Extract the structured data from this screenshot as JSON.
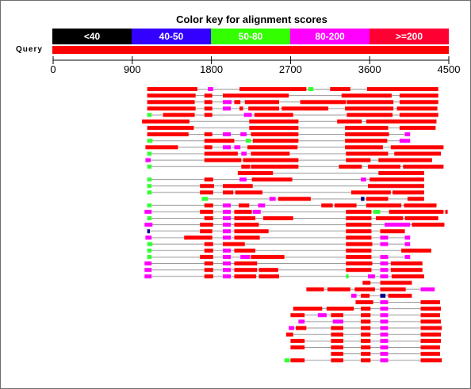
{
  "title": "Color key for alignment scores",
  "legend": [
    {
      "label": "<40",
      "color": "#000000",
      "text_color": "#ffffff"
    },
    {
      "label": "40-50",
      "color": "#3300ff",
      "text_color": "#ffffff"
    },
    {
      "label": "50-80",
      "color": "#33ff00",
      "text_color": "#ffffff"
    },
    {
      "label": "80-200",
      "color": "#ff00ff",
      "text_color": "#ffffff"
    },
    {
      "label": ">=200",
      "color": "#ff0033",
      "text_color": "#ffffff"
    }
  ],
  "query": {
    "label": "Query",
    "length": 4500,
    "color": "#ff0000"
  },
  "axis": {
    "min": 0,
    "max": 4500,
    "ticks": [
      0,
      900,
      1800,
      2700,
      3600,
      4500
    ]
  },
  "colors": {
    "red": "#ff0000",
    "magenta": "#ff00ff",
    "green": "#33ff33",
    "blue": "#00008b",
    "connector": "#999999"
  },
  "hits": [
    {
      "segs": [
        [
          1070,
          1640,
          "r"
        ],
        [
          1760,
          1820,
          "m"
        ],
        [
          2120,
          2880,
          "r"
        ],
        [
          2900,
          2960,
          "g"
        ],
        [
          3150,
          3380,
          "r"
        ],
        [
          3570,
          4380,
          "r"
        ]
      ]
    },
    {
      "segs": [
        [
          1070,
          1620,
          "r"
        ],
        [
          1720,
          1810,
          "r"
        ],
        [
          1930,
          2680,
          "r"
        ],
        [
          3280,
          3850,
          "r"
        ],
        [
          3940,
          4380,
          "r"
        ]
      ]
    },
    {
      "segs": [
        [
          1070,
          1610,
          "r"
        ],
        [
          1720,
          1810,
          "r"
        ],
        [
          1930,
          2030,
          "m"
        ],
        [
          2060,
          2130,
          "r"
        ],
        [
          2180,
          2570,
          "r"
        ],
        [
          2810,
          3330,
          "r"
        ],
        [
          3340,
          3870,
          "r"
        ],
        [
          3940,
          4380,
          "r"
        ]
      ]
    },
    {
      "segs": [
        [
          1070,
          1620,
          "r"
        ],
        [
          1720,
          1810,
          "r"
        ],
        [
          1930,
          2020,
          "m"
        ],
        [
          2120,
          2160,
          "r"
        ],
        [
          2220,
          2570,
          "r"
        ],
        [
          2600,
          3130,
          "r"
        ],
        [
          3320,
          3870,
          "r"
        ],
        [
          3910,
          4370,
          "r"
        ]
      ]
    },
    {
      "segs": [
        [
          1070,
          1120,
          "g"
        ],
        [
          1250,
          1610,
          "r"
        ],
        [
          1720,
          1810,
          "r"
        ],
        [
          2170,
          2260,
          "m"
        ],
        [
          2290,
          2730,
          "r"
        ],
        [
          3340,
          3860,
          "r"
        ],
        [
          3940,
          4380,
          "r"
        ]
      ]
    },
    {
      "segs": [
        [
          1010,
          1550,
          "r"
        ],
        [
          2230,
          2790,
          "r"
        ],
        [
          3230,
          3510,
          "r"
        ],
        [
          3560,
          4360,
          "r"
        ]
      ]
    },
    {
      "segs": [
        [
          1070,
          1600,
          "r"
        ],
        [
          2230,
          2790,
          "r"
        ],
        [
          3320,
          3810,
          "r"
        ],
        [
          3940,
          4350,
          "r"
        ]
      ]
    },
    {
      "segs": [
        [
          1070,
          1540,
          "r"
        ],
        [
          1720,
          1810,
          "r"
        ],
        [
          1930,
          2020,
          "m"
        ],
        [
          2130,
          2200,
          "m"
        ],
        [
          2250,
          2790,
          "r"
        ],
        [
          3320,
          3820,
          "r"
        ],
        [
          4000,
          4060,
          "m"
        ]
      ]
    },
    {
      "segs": [
        [
          1070,
          1130,
          "g"
        ],
        [
          2190,
          2250,
          "g"
        ],
        [
          1720,
          2060,
          "r"
        ],
        [
          2270,
          2790,
          "r"
        ],
        [
          3320,
          3800,
          "r"
        ],
        [
          3940,
          4060,
          "m"
        ]
      ]
    },
    {
      "segs": [
        [
          1050,
          1420,
          "r"
        ],
        [
          1720,
          1810,
          "r"
        ],
        [
          1930,
          2020,
          "m"
        ],
        [
          2060,
          2130,
          "m"
        ],
        [
          2210,
          2780,
          "r"
        ],
        [
          3320,
          3750,
          "r"
        ],
        [
          3840,
          4440,
          "r"
        ]
      ]
    },
    {
      "segs": [
        [
          1070,
          1120,
          "g"
        ],
        [
          1720,
          2100,
          "r"
        ],
        [
          2140,
          2200,
          "m"
        ],
        [
          2250,
          2690,
          "r"
        ],
        [
          3330,
          3810,
          "r"
        ],
        [
          3880,
          4410,
          "r"
        ]
      ]
    },
    {
      "segs": [
        [
          1050,
          1110,
          "m"
        ],
        [
          1720,
          2140,
          "r"
        ],
        [
          2160,
          2790,
          "r"
        ],
        [
          3330,
          3610,
          "r"
        ],
        [
          3700,
          4310,
          "r"
        ]
      ]
    },
    {
      "segs": [
        [
          1070,
          1120,
          "g"
        ],
        [
          2140,
          2240,
          "r"
        ],
        [
          2250,
          2540,
          "r"
        ],
        [
          2540,
          2790,
          "r"
        ],
        [
          3250,
          3510,
          "r"
        ],
        [
          3580,
          3950,
          "r"
        ],
        [
          3980,
          4440,
          "r"
        ]
      ]
    },
    {
      "segs": [
        [
          2100,
          2500,
          "r"
        ],
        [
          3700,
          4220,
          "r"
        ]
      ]
    },
    {
      "segs": [
        [
          1070,
          1120,
          "g"
        ],
        [
          1720,
          1820,
          "r"
        ],
        [
          2120,
          2200,
          "m"
        ],
        [
          2260,
          2720,
          "r"
        ],
        [
          3500,
          3560,
          "m"
        ],
        [
          3600,
          4220,
          "r"
        ]
      ]
    },
    {
      "segs": [
        [
          1070,
          1120,
          "g"
        ],
        [
          1670,
          1830,
          "r"
        ],
        [
          1930,
          2270,
          "r"
        ],
        [
          3580,
          4220,
          "r"
        ]
      ]
    },
    {
      "segs": [
        [
          1070,
          1120,
          "g"
        ],
        [
          1670,
          1820,
          "r"
        ],
        [
          1930,
          2050,
          "r"
        ],
        [
          2070,
          2380,
          "r"
        ],
        [
          3390,
          3840,
          "r"
        ],
        [
          3860,
          4220,
          "r"
        ]
      ]
    },
    {
      "segs": [
        [
          1690,
          1760,
          "g"
        ],
        [
          2460,
          2530,
          "m"
        ],
        [
          2560,
          2930,
          "r"
        ],
        [
          3500,
          3540,
          "b"
        ],
        [
          3560,
          3810,
          "r"
        ],
        [
          4030,
          4220,
          "r"
        ]
      ]
    },
    {
      "segs": [
        [
          1070,
          1120,
          "g"
        ],
        [
          1720,
          1820,
          "r"
        ],
        [
          1930,
          2020,
          "m"
        ],
        [
          2110,
          2230,
          "r"
        ],
        [
          2330,
          2410,
          "m"
        ],
        [
          3050,
          3180,
          "r"
        ],
        [
          3200,
          3450,
          "r"
        ],
        [
          3560,
          3960,
          "r"
        ],
        [
          3990,
          4360,
          "r"
        ]
      ]
    },
    {
      "segs": [
        [
          1040,
          1120,
          "m"
        ],
        [
          1670,
          1820,
          "r"
        ],
        [
          1930,
          2020,
          "m"
        ],
        [
          2060,
          2260,
          "r"
        ],
        [
          2270,
          2360,
          "m"
        ],
        [
          3330,
          3620,
          "r"
        ],
        [
          3640,
          3720,
          "g"
        ],
        [
          3820,
          4440,
          "r"
        ],
        [
          4460,
          4470,
          "r"
        ]
      ]
    },
    {
      "segs": [
        [
          1070,
          1120,
          "g"
        ],
        [
          1720,
          1820,
          "r"
        ],
        [
          1930,
          2020,
          "m"
        ],
        [
          2060,
          2300,
          "r"
        ],
        [
          2390,
          2730,
          "r"
        ],
        [
          3330,
          3620,
          "r"
        ],
        [
          3670,
          3980,
          "r"
        ],
        [
          4000,
          4380,
          "r"
        ]
      ]
    },
    {
      "segs": [
        [
          1040,
          1130,
          "m"
        ],
        [
          1670,
          1820,
          "r"
        ],
        [
          1930,
          2020,
          "m"
        ],
        [
          2060,
          2340,
          "r"
        ],
        [
          3330,
          3620,
          "r"
        ],
        [
          3770,
          4060,
          "m"
        ],
        [
          4080,
          4450,
          "r"
        ]
      ]
    },
    {
      "segs": [
        [
          1070,
          1100,
          "b"
        ],
        [
          1670,
          1810,
          "r"
        ],
        [
          1930,
          2020,
          "m"
        ],
        [
          2060,
          2450,
          "r"
        ],
        [
          3330,
          3620,
          "r"
        ],
        [
          3720,
          4000,
          "r"
        ]
      ]
    },
    {
      "segs": [
        [
          1050,
          1120,
          "m"
        ],
        [
          1490,
          1810,
          "r"
        ],
        [
          1930,
          2020,
          "m"
        ],
        [
          2060,
          2350,
          "r"
        ],
        [
          3330,
          3620,
          "r"
        ],
        [
          3720,
          3810,
          "m"
        ],
        [
          4000,
          4060,
          "m"
        ]
      ]
    },
    {
      "segs": [
        [
          1070,
          1130,
          "g"
        ],
        [
          1720,
          1820,
          "r"
        ],
        [
          1930,
          2070,
          "r"
        ],
        [
          2060,
          2180,
          "r"
        ],
        [
          3330,
          3630,
          "r"
        ],
        [
          3720,
          3810,
          "m"
        ],
        [
          4000,
          4060,
          "m"
        ]
      ]
    },
    {
      "segs": [
        [
          1070,
          1120,
          "g"
        ],
        [
          1720,
          1820,
          "r"
        ],
        [
          1930,
          2020,
          "m"
        ],
        [
          2060,
          2300,
          "r"
        ],
        [
          3330,
          3620,
          "r"
        ],
        [
          3960,
          4300,
          "r"
        ]
      ]
    },
    {
      "segs": [
        [
          1070,
          1120,
          "g"
        ],
        [
          1670,
          1820,
          "r"
        ],
        [
          1930,
          2020,
          "m"
        ],
        [
          2130,
          2240,
          "m"
        ],
        [
          2250,
          2630,
          "r"
        ],
        [
          3330,
          3620,
          "r"
        ],
        [
          3720,
          3810,
          "m"
        ],
        [
          4000,
          4060,
          "m"
        ]
      ]
    },
    {
      "segs": [
        [
          1040,
          1120,
          "m"
        ],
        [
          1720,
          1820,
          "r"
        ],
        [
          1930,
          2020,
          "m"
        ],
        [
          2060,
          2320,
          "r"
        ],
        [
          3330,
          3630,
          "r"
        ],
        [
          3720,
          3810,
          "m"
        ],
        [
          3840,
          4200,
          "r"
        ]
      ]
    },
    {
      "segs": [
        [
          1040,
          1120,
          "m"
        ],
        [
          1720,
          1820,
          "r"
        ],
        [
          1930,
          2020,
          "m"
        ],
        [
          2060,
          2320,
          "r"
        ],
        [
          2340,
          2560,
          "r"
        ],
        [
          3330,
          3620,
          "r"
        ],
        [
          3720,
          3810,
          "m"
        ],
        [
          3840,
          4200,
          "r"
        ]
      ]
    },
    {
      "segs": [
        [
          1040,
          1120,
          "m"
        ],
        [
          1720,
          1820,
          "r"
        ],
        [
          1930,
          2020,
          "m"
        ],
        [
          2060,
          2310,
          "r"
        ],
        [
          2340,
          2570,
          "r"
        ],
        [
          3330,
          3360,
          "g"
        ],
        [
          3580,
          3660,
          "m"
        ],
        [
          3720,
          3810,
          "m"
        ],
        [
          3850,
          4220,
          "r"
        ]
      ]
    },
    {
      "segs": [
        [
          3520,
          3610,
          "r"
        ],
        [
          3720,
          4080,
          "r"
        ]
      ]
    },
    {
      "segs": [
        [
          2880,
          3080,
          "r"
        ],
        [
          3120,
          3380,
          "r"
        ],
        [
          3430,
          3660,
          "r"
        ],
        [
          3720,
          4010,
          "r"
        ],
        [
          4180,
          4340,
          "m"
        ]
      ]
    },
    {
      "segs": [
        [
          3390,
          3450,
          "m"
        ],
        [
          3500,
          3600,
          "r"
        ],
        [
          3720,
          3780,
          "b"
        ],
        [
          3810,
          4080,
          "r"
        ]
      ]
    },
    {
      "segs": [
        [
          3440,
          3640,
          "r"
        ],
        [
          3720,
          3810,
          "m"
        ],
        [
          4180,
          4400,
          "r"
        ]
      ]
    },
    {
      "segs": [
        [
          2730,
          3060,
          "r"
        ],
        [
          3110,
          3420,
          "r"
        ],
        [
          3500,
          3610,
          "r"
        ],
        [
          3720,
          3810,
          "m"
        ],
        [
          4180,
          4410,
          "r"
        ]
      ]
    },
    {
      "segs": [
        [
          2700,
          2860,
          "r"
        ],
        [
          3010,
          3110,
          "m"
        ],
        [
          3160,
          3300,
          "r"
        ],
        [
          3500,
          3610,
          "r"
        ],
        [
          3720,
          3810,
          "m"
        ],
        [
          4180,
          4400,
          "r"
        ]
      ]
    },
    {
      "segs": [
        [
          2790,
          2860,
          "m"
        ],
        [
          3180,
          3300,
          "m"
        ],
        [
          3500,
          3610,
          "r"
        ],
        [
          3720,
          3810,
          "m"
        ],
        [
          4180,
          4410,
          "r"
        ]
      ]
    },
    {
      "segs": [
        [
          2680,
          2740,
          "m"
        ],
        [
          2760,
          2880,
          "r"
        ],
        [
          3160,
          3300,
          "r"
        ],
        [
          3500,
          3610,
          "r"
        ],
        [
          3720,
          3810,
          "m"
        ],
        [
          4180,
          4420,
          "r"
        ]
      ]
    },
    {
      "segs": [
        [
          2650,
          2730,
          "r"
        ],
        [
          3160,
          3300,
          "r"
        ],
        [
          3500,
          3610,
          "r"
        ],
        [
          3720,
          3810,
          "m"
        ],
        [
          4180,
          4410,
          "r"
        ]
      ]
    },
    {
      "segs": [
        [
          2700,
          2860,
          "r"
        ],
        [
          3160,
          3300,
          "r"
        ],
        [
          3500,
          3610,
          "r"
        ],
        [
          3720,
          3810,
          "m"
        ],
        [
          4180,
          4410,
          "r"
        ]
      ]
    },
    {
      "segs": [
        [
          2700,
          2860,
          "r"
        ],
        [
          3160,
          3300,
          "r"
        ],
        [
          3500,
          3610,
          "r"
        ],
        [
          3720,
          3810,
          "m"
        ],
        [
          4180,
          4400,
          "r"
        ]
      ]
    },
    {
      "segs": [
        [
          3160,
          3300,
          "r"
        ],
        [
          3500,
          3610,
          "r"
        ],
        [
          3720,
          3810,
          "m"
        ],
        [
          4180,
          4400,
          "r"
        ]
      ]
    },
    {
      "segs": [
        [
          2630,
          2690,
          "g"
        ],
        [
          2700,
          2860,
          "r"
        ],
        [
          3160,
          3300,
          "r"
        ],
        [
          3500,
          3610,
          "r"
        ],
        [
          3720,
          3810,
          "m"
        ],
        [
          4180,
          4420,
          "r"
        ]
      ]
    }
  ]
}
